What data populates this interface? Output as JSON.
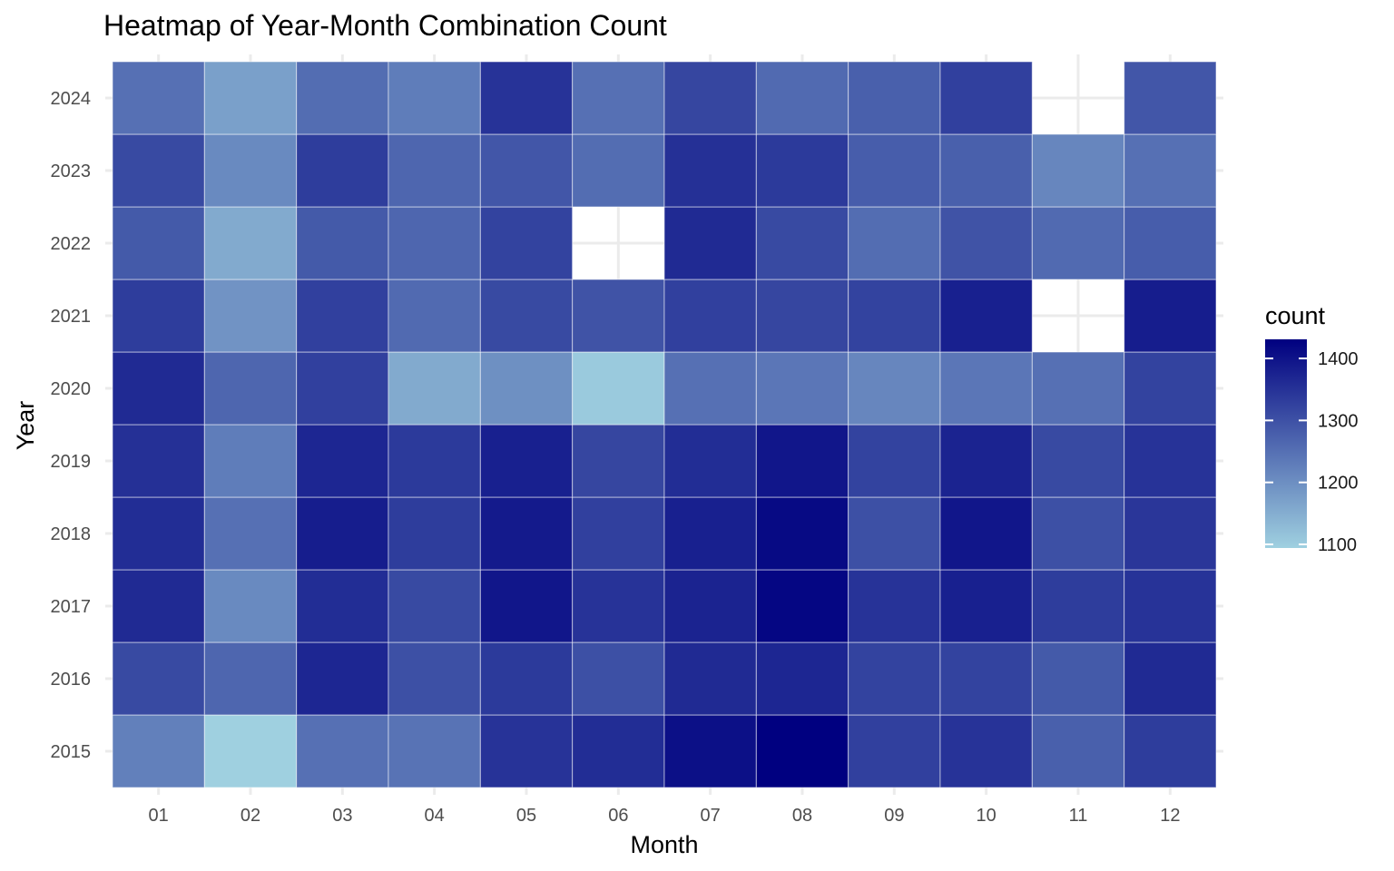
{
  "chart_data": {
    "type": "heatmap",
    "title": "Heatmap of Year-Month Combination Count",
    "xlabel": "Month",
    "ylabel": "Year",
    "x_categories": [
      "01",
      "02",
      "03",
      "04",
      "05",
      "06",
      "07",
      "08",
      "09",
      "10",
      "11",
      "12"
    ],
    "y_categories": [
      "2015",
      "2016",
      "2017",
      "2018",
      "2019",
      "2020",
      "2021",
      "2022",
      "2023",
      "2024"
    ],
    "values": {
      "2024": [
        1250,
        1175,
        1255,
        1230,
        1345,
        1250,
        1315,
        1260,
        1275,
        1325,
        null,
        1290
      ],
      "2023": [
        1310,
        1210,
        1330,
        1265,
        1290,
        1255,
        1350,
        1335,
        1280,
        1275,
        1215,
        1250
      ],
      "2022": [
        1285,
        1160,
        1285,
        1265,
        1320,
        null,
        1360,
        1310,
        1255,
        1295,
        1260,
        1280
      ],
      "2021": [
        1330,
        1195,
        1325,
        1260,
        1310,
        1295,
        1325,
        1315,
        1320,
        1375,
        null,
        1380
      ],
      "2020": [
        1360,
        1265,
        1325,
        1160,
        1200,
        1110,
        1250,
        1240,
        1215,
        1240,
        1250,
        1320
      ],
      "2019": [
        1350,
        1230,
        1365,
        1335,
        1375,
        1315,
        1355,
        1390,
        1320,
        1370,
        1310,
        1345
      ],
      "2018": [
        1355,
        1250,
        1380,
        1330,
        1385,
        1325,
        1375,
        1410,
        1300,
        1390,
        1300,
        1340
      ],
      "2017": [
        1360,
        1210,
        1355,
        1310,
        1390,
        1345,
        1370,
        1415,
        1345,
        1375,
        1330,
        1345
      ],
      "2016": [
        1310,
        1265,
        1365,
        1300,
        1335,
        1300,
        1360,
        1365,
        1320,
        1320,
        1285,
        1360
      ],
      "2015": [
        1225,
        1100,
        1250,
        1245,
        1345,
        1355,
        1400,
        1425,
        1325,
        1345,
        1275,
        1330
      ]
    },
    "color_scale": {
      "low": "#9FD0E0",
      "high": "#000080",
      "min": 1100,
      "max": 1425
    },
    "legend": {
      "title": "count",
      "ticks": [
        1100,
        1200,
        1300,
        1400
      ],
      "placement": "right"
    },
    "grid": true
  }
}
